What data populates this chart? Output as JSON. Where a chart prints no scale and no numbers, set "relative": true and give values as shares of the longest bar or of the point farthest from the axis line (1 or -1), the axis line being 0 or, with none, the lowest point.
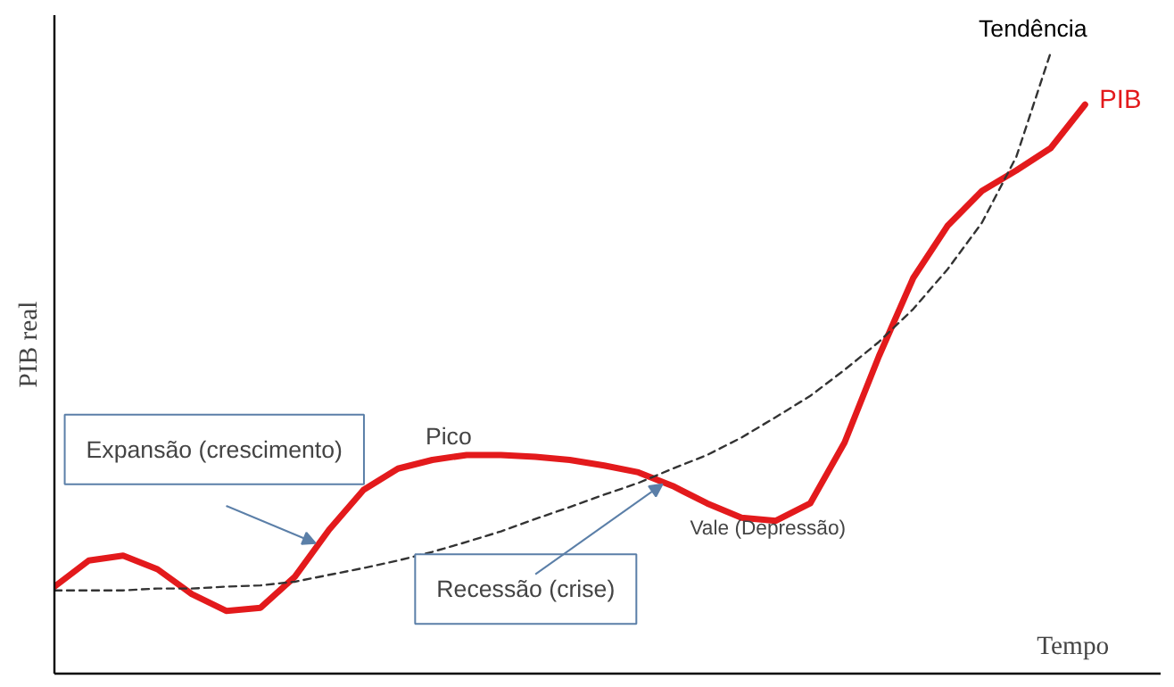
{
  "chart_data": {
    "type": "line",
    "relative": true,
    "xlabel": "Tempo",
    "ylabel": "PIB real",
    "tick_labels": false,
    "grid": false,
    "categories": [
      null,
      null,
      null,
      null,
      null,
      null,
      null,
      null,
      null,
      null,
      null,
      null,
      null,
      null,
      null,
      null,
      null,
      null,
      null,
      null,
      null,
      null,
      null,
      null,
      null,
      null,
      null,
      null,
      null,
      null,
      null
    ],
    "series": [
      {
        "name": "PIB",
        "color": "#e31a1c",
        "line_style": "solid",
        "values": [
          0.14,
          0.182,
          0.19,
          0.168,
          0.128,
          0.101,
          0.106,
          0.156,
          0.232,
          0.296,
          0.33,
          0.344,
          0.352,
          0.352,
          0.349,
          0.344,
          0.335,
          0.324,
          0.302,
          0.274,
          0.251,
          0.246,
          0.274,
          0.372,
          0.511,
          0.637,
          0.721,
          0.777,
          0.81,
          0.846,
          0.916
        ]
      },
      {
        "name": "Tendência",
        "color": "#333333",
        "line_style": "dashed",
        "values": [
          0.134,
          0.134,
          0.134,
          0.137,
          0.137,
          0.14,
          0.142,
          0.148,
          0.159,
          0.17,
          0.182,
          0.196,
          0.212,
          0.229,
          0.249,
          0.268,
          0.288,
          0.307,
          0.33,
          0.352,
          0.38,
          0.413,
          0.447,
          0.489,
          0.534,
          0.587,
          0.651,
          0.726,
          0.832,
          1.0,
          null
        ]
      }
    ],
    "annotations": [
      "Pico",
      "Vale (Depressão)",
      "Expansão (crescimento)",
      "Recessão (crise)"
    ]
  }
}
